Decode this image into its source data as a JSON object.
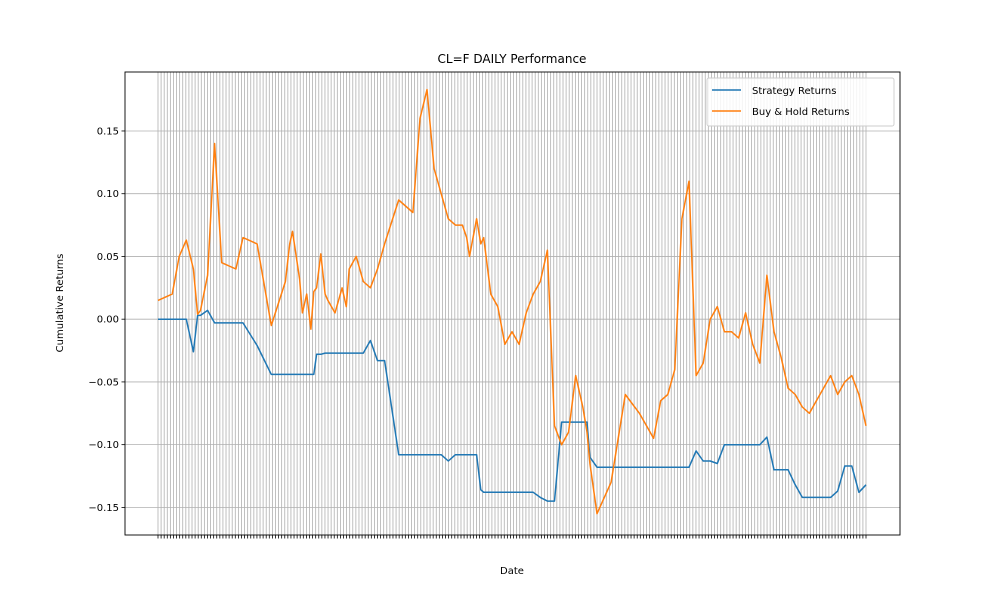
{
  "chart_data": {
    "type": "line",
    "title": "CL=F DAILY Performance",
    "xlabel": "Date",
    "ylabel": "Cumulative Returns",
    "ylim": [
      -0.172,
      0.197
    ],
    "yticks": [
      -0.15,
      -0.1,
      -0.05,
      0.0,
      0.05,
      0.1,
      0.15
    ],
    "ytick_labels": [
      "−0.15",
      "−0.10",
      "−0.05",
      "0.00",
      "0.05",
      "0.10",
      "0.15"
    ],
    "grid": true,
    "legend_position": "upper-right",
    "x": [
      0,
      10,
      15,
      20,
      25,
      28,
      30,
      35,
      40,
      45,
      55,
      60,
      70,
      80,
      90,
      93,
      95,
      100,
      102,
      105,
      108,
      110,
      112,
      115,
      118,
      120,
      125,
      130,
      133,
      135,
      140,
      145,
      150,
      155,
      160,
      170,
      180,
      185,
      190,
      195,
      200,
      205,
      210,
      215,
      218,
      220,
      225,
      228,
      230,
      235,
      240,
      245,
      250,
      255,
      260,
      265,
      270,
      275,
      280,
      285,
      290,
      295,
      300,
      303,
      305,
      310,
      320,
      330,
      340,
      345,
      350,
      355,
      360,
      365,
      370,
      375,
      380,
      385,
      390,
      395,
      400,
      405,
      410,
      415,
      420,
      425,
      430,
      435,
      440,
      445,
      450,
      455,
      460,
      465,
      470,
      475,
      480,
      485,
      490,
      495,
      500
    ],
    "series": [
      {
        "name": "Strategy Returns",
        "color": "#1f77b4",
        "values": [
          0.0,
          0.0,
          0.0,
          0.0,
          -0.026,
          0.003,
          0.003,
          0.007,
          -0.003,
          -0.003,
          -0.003,
          -0.003,
          -0.021,
          -0.044,
          -0.044,
          -0.044,
          -0.044,
          -0.044,
          -0.044,
          -0.044,
          -0.044,
          -0.044,
          -0.028,
          -0.028,
          -0.027,
          -0.027,
          -0.027,
          -0.027,
          -0.027,
          -0.027,
          -0.027,
          -0.027,
          -0.017,
          -0.033,
          -0.033,
          -0.108,
          -0.108,
          -0.108,
          -0.108,
          -0.108,
          -0.108,
          -0.113,
          -0.108,
          -0.108,
          -0.108,
          -0.108,
          -0.108,
          -0.136,
          -0.138,
          -0.138,
          -0.138,
          -0.138,
          -0.138,
          -0.138,
          -0.138,
          -0.138,
          -0.142,
          -0.145,
          -0.145,
          -0.082,
          -0.082,
          -0.082,
          -0.082,
          -0.082,
          -0.11,
          -0.118,
          -0.118,
          -0.118,
          -0.118,
          -0.118,
          -0.118,
          -0.118,
          -0.118,
          -0.118,
          -0.118,
          -0.118,
          -0.105,
          -0.113,
          -0.113,
          -0.115,
          -0.1,
          -0.1,
          -0.1,
          -0.1,
          -0.1,
          -0.1,
          -0.094,
          -0.12,
          -0.12,
          -0.12,
          -0.132,
          -0.142,
          -0.142,
          -0.142,
          -0.142,
          -0.142,
          -0.137,
          -0.117,
          -0.117,
          -0.138,
          -0.132
        ]
      },
      {
        "name": "Buy & Hold Returns",
        "color": "#ff7f0e",
        "values": [
          0.015,
          0.02,
          0.05,
          0.063,
          0.04,
          0.004,
          0.007,
          0.035,
          0.14,
          0.045,
          0.04,
          0.065,
          0.06,
          -0.005,
          0.03,
          0.06,
          0.07,
          0.032,
          0.005,
          0.02,
          -0.008,
          0.022,
          0.025,
          0.052,
          0.02,
          0.015,
          0.005,
          0.025,
          0.01,
          0.04,
          0.05,
          0.03,
          0.025,
          0.04,
          0.06,
          0.095,
          0.085,
          0.16,
          0.183,
          0.12,
          0.1,
          0.08,
          0.075,
          0.075,
          0.065,
          0.05,
          0.08,
          0.06,
          0.065,
          0.02,
          0.01,
          -0.02,
          -0.01,
          -0.02,
          0.005,
          0.02,
          0.03,
          0.055,
          -0.085,
          -0.1,
          -0.09,
          -0.045,
          -0.07,
          -0.09,
          -0.115,
          -0.155,
          -0.13,
          -0.06,
          -0.075,
          -0.085,
          -0.095,
          -0.065,
          -0.06,
          -0.04,
          0.08,
          0.11,
          -0.045,
          -0.035,
          0.0,
          0.01,
          -0.01,
          -0.01,
          -0.015,
          0.005,
          -0.02,
          -0.035,
          0.035,
          -0.01,
          -0.03,
          -0.055,
          -0.06,
          -0.07,
          -0.075,
          -0.065,
          -0.055,
          -0.045,
          -0.06,
          -0.05,
          -0.045,
          -0.06,
          -0.085
        ]
      }
    ]
  }
}
